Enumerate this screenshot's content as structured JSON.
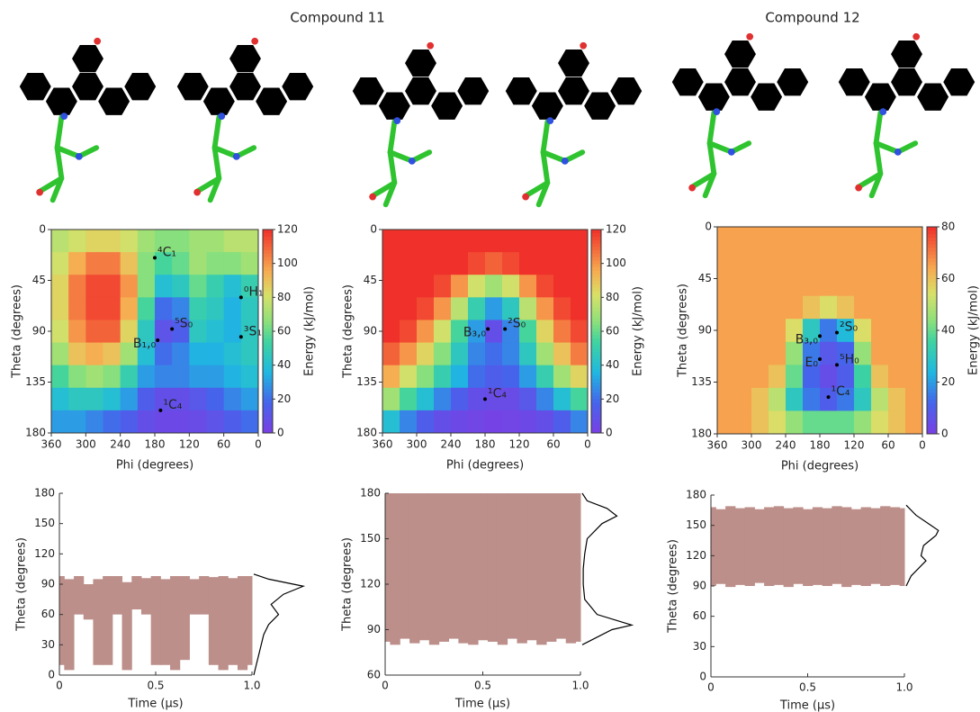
{
  "headings": [
    "Compound 11",
    "Compound 12"
  ],
  "chart_data": [
    {
      "type": "heatmap",
      "x": [
        345,
        315,
        285,
        255,
        225,
        195,
        165,
        135,
        105,
        75,
        45,
        15
      ],
      "y": [
        10,
        30,
        50,
        70,
        90,
        110,
        130,
        150,
        170
      ],
      "z": [
        [
          75,
          80,
          85,
          85,
          80,
          70,
          65,
          65,
          70,
          70,
          75,
          75
        ],
        [
          80,
          95,
          105,
          105,
          90,
          65,
          55,
          60,
          70,
          65,
          65,
          70
        ],
        [
          85,
          105,
          115,
          115,
          100,
          65,
          40,
          45,
          60,
          50,
          40,
          50
        ],
        [
          85,
          105,
          115,
          115,
          95,
          55,
          20,
          25,
          50,
          45,
          35,
          45
        ],
        [
          80,
          100,
          110,
          110,
          85,
          45,
          10,
          15,
          45,
          40,
          35,
          45
        ],
        [
          70,
          90,
          95,
          90,
          70,
          40,
          20,
          25,
          35,
          35,
          40,
          45
        ],
        [
          55,
          65,
          70,
          65,
          50,
          30,
          25,
          25,
          30,
          30,
          35,
          40
        ],
        [
          40,
          45,
          45,
          40,
          30,
          15,
          8,
          8,
          12,
          18,
          25,
          30
        ],
        [
          30,
          30,
          25,
          20,
          15,
          8,
          5,
          5,
          6,
          10,
          15,
          20
        ]
      ],
      "xlim": [
        360,
        0
      ],
      "xticks": [
        360,
        300,
        240,
        180,
        120,
        60,
        0
      ],
      "ylim": [
        180,
        0
      ],
      "yticks": [
        0,
        45,
        90,
        135,
        180
      ],
      "zlim": [
        0,
        120
      ],
      "zticks": [
        0,
        20,
        40,
        60,
        80,
        100,
        120
      ],
      "xlabel": "Phi (degrees)",
      "ylabel": "Theta (degrees)",
      "colorbar_label": "Energy (kJ/mol)",
      "points": [
        {
          "phi": 180,
          "theta": 25,
          "label": "⁴C₁"
        },
        {
          "phi": 30,
          "theta": 60,
          "label": "⁰H₁"
        },
        {
          "phi": 30,
          "theta": 95,
          "label": "³S₁"
        },
        {
          "phi": 175,
          "theta": 98,
          "label": "B₁,₀"
        },
        {
          "phi": 150,
          "theta": 88,
          "label": "⁵S₀"
        },
        {
          "phi": 170,
          "theta": 160,
          "label": "¹C₄"
        }
      ]
    },
    {
      "type": "heatmap",
      "x": [
        345,
        315,
        285,
        255,
        225,
        195,
        165,
        135,
        105,
        75,
        45,
        15
      ],
      "y": [
        10,
        30,
        50,
        70,
        90,
        110,
        130,
        150,
        170
      ],
      "z": [
        [
          120,
          120,
          120,
          120,
          120,
          120,
          120,
          120,
          120,
          120,
          120,
          120
        ],
        [
          120,
          120,
          120,
          120,
          120,
          115,
          110,
          115,
          120,
          120,
          120,
          120
        ],
        [
          120,
          120,
          120,
          115,
          100,
          80,
          70,
          80,
          100,
          115,
          120,
          120
        ],
        [
          120,
          120,
          115,
          100,
          75,
          50,
          30,
          45,
          75,
          100,
          115,
          120
        ],
        [
          120,
          115,
          100,
          80,
          55,
          30,
          8,
          25,
          55,
          85,
          105,
          115
        ],
        [
          110,
          100,
          85,
          65,
          45,
          25,
          20,
          25,
          45,
          70,
          90,
          105
        ],
        [
          95,
          80,
          65,
          50,
          35,
          20,
          15,
          18,
          30,
          50,
          70,
          85
        ],
        [
          70,
          55,
          40,
          25,
          15,
          8,
          6,
          6,
          12,
          25,
          40,
          55
        ],
        [
          40,
          25,
          15,
          8,
          5,
          3,
          2,
          3,
          5,
          8,
          15,
          25
        ]
      ],
      "xlim": [
        360,
        0
      ],
      "xticks": [
        360,
        300,
        240,
        180,
        120,
        60,
        0
      ],
      "ylim": [
        180,
        0
      ],
      "yticks": [
        0,
        45,
        90,
        135,
        180
      ],
      "zlim": [
        0,
        120
      ],
      "zticks": [
        0,
        20,
        40,
        60,
        80,
        100,
        120
      ],
      "xlabel": "Phi (degrees)",
      "ylabel": "Theta (degrees)",
      "colorbar_label": "Energy (kJ/mol)",
      "points": [
        {
          "phi": 175,
          "theta": 88,
          "label": "B₃,₀"
        },
        {
          "phi": 145,
          "theta": 88,
          "label": "²S₀"
        },
        {
          "phi": 180,
          "theta": 150,
          "label": "¹C₄"
        }
      ]
    },
    {
      "type": "heatmap",
      "x": [
        345,
        315,
        285,
        255,
        225,
        195,
        165,
        135,
        105,
        75,
        45,
        15
      ],
      "y": [
        10,
        30,
        50,
        70,
        90,
        110,
        130,
        150,
        170
      ],
      "z": [
        [
          65,
          65,
          65,
          65,
          65,
          65,
          65,
          65,
          65,
          65,
          65,
          65
        ],
        [
          65,
          65,
          65,
          65,
          65,
          65,
          65,
          65,
          65,
          65,
          65,
          65
        ],
        [
          65,
          65,
          65,
          65,
          65,
          65,
          65,
          65,
          65,
          65,
          65,
          65
        ],
        [
          65,
          65,
          65,
          65,
          65,
          60,
          55,
          60,
          65,
          65,
          65,
          65
        ],
        [
          65,
          65,
          65,
          65,
          55,
          30,
          15,
          25,
          55,
          65,
          65,
          65
        ],
        [
          65,
          65,
          65,
          65,
          45,
          15,
          8,
          12,
          45,
          65,
          65,
          65
        ],
        [
          65,
          65,
          65,
          60,
          40,
          12,
          5,
          10,
          35,
          60,
          65,
          65
        ],
        [
          65,
          65,
          60,
          50,
          30,
          15,
          10,
          15,
          30,
          50,
          60,
          65
        ],
        [
          65,
          65,
          60,
          55,
          45,
          40,
          40,
          40,
          45,
          55,
          60,
          65
        ]
      ],
      "xlim": [
        360,
        0
      ],
      "xticks": [
        360,
        300,
        240,
        180,
        120,
        60,
        0
      ],
      "ylim": [
        180,
        0
      ],
      "yticks": [
        0,
        45,
        90,
        135,
        180
      ],
      "zlim": [
        0,
        80
      ],
      "zticks": [
        0,
        20,
        40,
        60,
        80
      ],
      "xlabel": "Phi (degrees)",
      "ylabel": "Theta (degrees)",
      "colorbar_label": "Energy (kJ/mol)",
      "points": [
        {
          "phi": 180,
          "theta": 95,
          "label": "B₃,₀"
        },
        {
          "phi": 150,
          "theta": 92,
          "label": "²S₀"
        },
        {
          "phi": 180,
          "theta": 115,
          "label": "E₀"
        },
        {
          "phi": 150,
          "theta": 120,
          "label": "⁵H₀"
        },
        {
          "phi": 165,
          "theta": 148,
          "label": "¹C₄"
        }
      ]
    },
    {
      "type": "range",
      "color": "#bc8f8a",
      "x": [
        0,
        0.05,
        0.1,
        0.15,
        0.2,
        0.25,
        0.3,
        0.35,
        0.4,
        0.45,
        0.5,
        0.55,
        0.6,
        0.65,
        0.7,
        0.75,
        0.8,
        0.85,
        0.9,
        0.95,
        1
      ],
      "lower": [
        10,
        5,
        60,
        55,
        10,
        10,
        60,
        5,
        65,
        60,
        10,
        10,
        5,
        15,
        60,
        60,
        10,
        5,
        10,
        5,
        10
      ],
      "upper": [
        98,
        95,
        98,
        90,
        95,
        98,
        98,
        92,
        98,
        96,
        98,
        95,
        98,
        98,
        95,
        98,
        97,
        98,
        96,
        98,
        98
      ],
      "xlim": [
        0,
        1
      ],
      "xticks": [
        0,
        0.5,
        {
          "value": 1,
          "label": "1.0"
        }
      ],
      "ylim": [
        0,
        180
      ],
      "yticks": [
        0,
        30,
        60,
        90,
        120,
        150,
        180
      ],
      "xlabel": "Time (μs)",
      "ylabel": "Theta (degrees)",
      "distribution": {
        "theta": [
          0,
          10,
          20,
          30,
          40,
          50,
          60,
          70,
          80,
          88,
          95,
          100
        ],
        "density": [
          0,
          0.05,
          0.1,
          0.15,
          0.2,
          0.3,
          0.5,
          0.35,
          0.6,
          1,
          0.3,
          0
        ]
      }
    },
    {
      "type": "range",
      "color": "#bc8f8a",
      "x": [
        0,
        0.05,
        0.1,
        0.15,
        0.2,
        0.25,
        0.3,
        0.35,
        0.4,
        0.45,
        0.5,
        0.55,
        0.6,
        0.65,
        0.7,
        0.75,
        0.8,
        0.85,
        0.9,
        0.95,
        1
      ],
      "lower": [
        82,
        80,
        84,
        81,
        83,
        80,
        82,
        84,
        81,
        80,
        83,
        82,
        80,
        84,
        81,
        83,
        80,
        82,
        84,
        81,
        82
      ],
      "upper": [
        180,
        180,
        180,
        180,
        180,
        180,
        180,
        180,
        180,
        180,
        180,
        180,
        180,
        180,
        180,
        180,
        180,
        180,
        180,
        180,
        180
      ],
      "xlim": [
        0,
        1
      ],
      "xticks": [
        0,
        0.5,
        {
          "value": 1,
          "label": "1.0"
        }
      ],
      "ylim": [
        60,
        180
      ],
      "yticks": [
        60,
        90,
        120,
        150,
        180
      ],
      "xlabel": "Time (μs)",
      "ylabel": "Theta (degrees)",
      "distribution": {
        "theta": [
          80,
          90,
          93,
          100,
          110,
          120,
          130,
          140,
          150,
          160,
          165,
          170,
          175,
          180
        ],
        "density": [
          0,
          0.6,
          1,
          0.3,
          0.05,
          0.02,
          0.02,
          0.05,
          0.1,
          0.4,
          0.7,
          0.5,
          0.1,
          0
        ]
      }
    },
    {
      "type": "range",
      "color": "#bc8f8a",
      "x": [
        0,
        0.05,
        0.1,
        0.15,
        0.2,
        0.25,
        0.3,
        0.35,
        0.4,
        0.45,
        0.5,
        0.55,
        0.6,
        0.65,
        0.7,
        0.75,
        0.8,
        0.85,
        0.9,
        0.95,
        1
      ],
      "lower": [
        90,
        92,
        89,
        91,
        90,
        93,
        90,
        91,
        89,
        92,
        90,
        91,
        90,
        92,
        89,
        91,
        90,
        92,
        90,
        91,
        90
      ],
      "upper": [
        168,
        166,
        169,
        167,
        168,
        166,
        168,
        169,
        167,
        168,
        166,
        168,
        167,
        169,
        168,
        166,
        168,
        167,
        169,
        168,
        167
      ],
      "xlim": [
        0,
        1
      ],
      "xticks": [
        0,
        0.5,
        {
          "value": 1,
          "label": "1.0"
        }
      ],
      "ylim": [
        0,
        180
      ],
      "yticks": [
        0,
        30,
        60,
        90,
        120,
        150,
        180
      ],
      "xlabel": "Time (μs)",
      "ylabel": "Theta (degrees)",
      "distribution": {
        "theta": [
          90,
          100,
          110,
          115,
          120,
          130,
          140,
          145,
          150,
          160,
          170
        ],
        "density": [
          0,
          0.1,
          0.3,
          0.4,
          0.3,
          0.35,
          0.6,
          0.65,
          0.5,
          0.2,
          0
        ]
      }
    }
  ]
}
